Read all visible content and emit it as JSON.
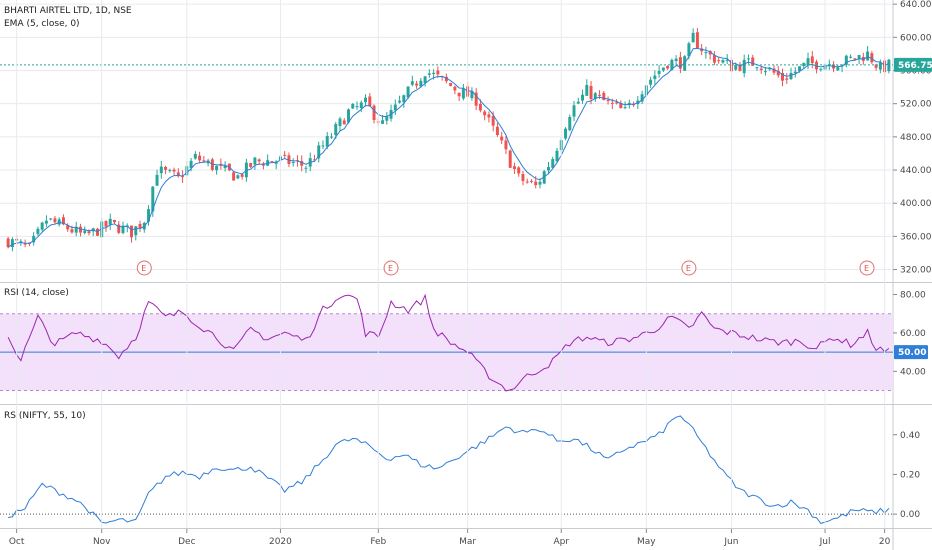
{
  "chart_data": {
    "type": "candlestick",
    "title": "BHARTI AIRTEL LTD, 1D, NSE",
    "indicator_label": "EMA (5, close, 0)",
    "last_price_label": "566.75",
    "last_price": 566.75,
    "x_tick_labels": [
      "Oct",
      "Nov",
      "Dec",
      "2020",
      "Feb",
      "Mar",
      "Apr",
      "May",
      "Jun",
      "Jul",
      "20"
    ],
    "x_tick_index": [
      2,
      22,
      42,
      64,
      87,
      108,
      130,
      150,
      170,
      192,
      206
    ],
    "n_bars": 208,
    "earnings_label": "E",
    "earnings_index": [
      32,
      90,
      160,
      208
    ],
    "price_axis": {
      "ylim": [
        305,
        645
      ],
      "ticks": [
        320,
        360,
        400,
        440,
        480,
        520,
        560,
        600,
        640
      ],
      "tick_labels": [
        "320.00",
        "360.00",
        "400.00",
        "440.00",
        "480.00",
        "520.00",
        "560.00",
        "600.00",
        "640.00"
      ]
    },
    "price_keypoints": [
      [
        0,
        355
      ],
      [
        5,
        345
      ],
      [
        9,
        380
      ],
      [
        14,
        370
      ],
      [
        18,
        360
      ],
      [
        24,
        375
      ],
      [
        29,
        365
      ],
      [
        32,
        380
      ],
      [
        35,
        440
      ],
      [
        40,
        430
      ],
      [
        44,
        455
      ],
      [
        50,
        440
      ],
      [
        54,
        432
      ],
      [
        58,
        450
      ],
      [
        64,
        452
      ],
      [
        70,
        445
      ],
      [
        75,
        475
      ],
      [
        80,
        510
      ],
      [
        84,
        520
      ],
      [
        88,
        495
      ],
      [
        92,
        520
      ],
      [
        98,
        560
      ],
      [
        102,
        548
      ],
      [
        106,
        535
      ],
      [
        110,
        525
      ],
      [
        116,
        470
      ],
      [
        120,
        430
      ],
      [
        124,
        420
      ],
      [
        128,
        455
      ],
      [
        132,
        510
      ],
      [
        136,
        535
      ],
      [
        141,
        520
      ],
      [
        145,
        510
      ],
      [
        150,
        545
      ],
      [
        155,
        570
      ],
      [
        159,
        570
      ],
      [
        161,
        600
      ],
      [
        164,
        580
      ],
      [
        170,
        565
      ],
      [
        176,
        570
      ],
      [
        182,
        550
      ],
      [
        188,
        568
      ],
      [
        196,
        570
      ],
      [
        202,
        580
      ],
      [
        205,
        562
      ],
      [
        207,
        566
      ]
    ],
    "rsi": {
      "title": "RSI (14, close)",
      "last_value_label": "50.00",
      "ylim": [
        23,
        86
      ],
      "band": [
        30,
        70
      ],
      "midline": 50,
      "ticks": [
        40,
        60,
        80
      ],
      "tick_labels": [
        "40.00",
        "60.00",
        "80.00"
      ],
      "keypoints": [
        [
          0,
          58
        ],
        [
          3,
          46
        ],
        [
          7,
          68
        ],
        [
          11,
          54
        ],
        [
          16,
          60
        ],
        [
          22,
          56
        ],
        [
          26,
          48
        ],
        [
          30,
          58
        ],
        [
          33,
          76
        ],
        [
          37,
          68
        ],
        [
          41,
          71
        ],
        [
          45,
          64
        ],
        [
          49,
          58
        ],
        [
          53,
          50
        ],
        [
          57,
          62
        ],
        [
          61,
          57
        ],
        [
          65,
          60
        ],
        [
          70,
          56
        ],
        [
          74,
          72
        ],
        [
          78,
          80
        ],
        [
          82,
          78
        ],
        [
          84,
          60
        ],
        [
          87,
          58
        ],
        [
          90,
          76
        ],
        [
          94,
          72
        ],
        [
          98,
          78
        ],
        [
          100,
          62
        ],
        [
          104,
          55
        ],
        [
          108,
          50
        ],
        [
          112,
          40
        ],
        [
          115,
          34
        ],
        [
          118,
          30
        ],
        [
          121,
          36
        ],
        [
          124,
          40
        ],
        [
          128,
          45
        ],
        [
          132,
          55
        ],
        [
          136,
          58
        ],
        [
          140,
          55
        ],
        [
          144,
          56
        ],
        [
          148,
          58
        ],
        [
          152,
          62
        ],
        [
          156,
          68
        ],
        [
          160,
          62
        ],
        [
          163,
          70
        ],
        [
          166,
          62
        ],
        [
          170,
          60
        ],
        [
          174,
          58
        ],
        [
          178,
          56
        ],
        [
          182,
          55
        ],
        [
          186,
          56
        ],
        [
          190,
          52
        ],
        [
          194,
          58
        ],
        [
          198,
          54
        ],
        [
          202,
          60
        ],
        [
          204,
          52
        ],
        [
          207,
          50
        ]
      ]
    },
    "rs": {
      "title": "RS (NIFTY, 55, 10)",
      "ylim": [
        -0.07,
        0.55
      ],
      "zero_line": 0,
      "ticks": [
        0.0,
        0.2,
        0.4
      ],
      "tick_labels": [
        "0.00",
        "0.20",
        "0.40"
      ],
      "keypoints": [
        [
          0,
          -0.01
        ],
        [
          4,
          0.03
        ],
        [
          8,
          0.15
        ],
        [
          12,
          0.11
        ],
        [
          16,
          0.07
        ],
        [
          19,
          0.02
        ],
        [
          22,
          -0.05
        ],
        [
          26,
          -0.03
        ],
        [
          30,
          -0.04
        ],
        [
          33,
          0.1
        ],
        [
          37,
          0.19
        ],
        [
          41,
          0.21
        ],
        [
          45,
          0.19
        ],
        [
          49,
          0.24
        ],
        [
          53,
          0.22
        ],
        [
          57,
          0.24
        ],
        [
          61,
          0.18
        ],
        [
          65,
          0.12
        ],
        [
          69,
          0.16
        ],
        [
          73,
          0.25
        ],
        [
          77,
          0.35
        ],
        [
          81,
          0.38
        ],
        [
          85,
          0.34
        ],
        [
          89,
          0.28
        ],
        [
          93,
          0.3
        ],
        [
          97,
          0.25
        ],
        [
          101,
          0.23
        ],
        [
          105,
          0.28
        ],
        [
          109,
          0.33
        ],
        [
          113,
          0.38
        ],
        [
          117,
          0.44
        ],
        [
          121,
          0.41
        ],
        [
          125,
          0.43
        ],
        [
          129,
          0.37
        ],
        [
          133,
          0.38
        ],
        [
          137,
          0.33
        ],
        [
          141,
          0.27
        ],
        [
          145,
          0.33
        ],
        [
          149,
          0.36
        ],
        [
          153,
          0.4
        ],
        [
          156,
          0.47
        ],
        [
          158,
          0.5
        ],
        [
          161,
          0.42
        ],
        [
          164,
          0.33
        ],
        [
          168,
          0.21
        ],
        [
          172,
          0.12
        ],
        [
          176,
          0.08
        ],
        [
          180,
          0.04
        ],
        [
          184,
          0.06
        ],
        [
          188,
          0.02
        ],
        [
          191,
          -0.04
        ],
        [
          195,
          -0.02
        ],
        [
          199,
          0.02
        ],
        [
          203,
          0.01
        ],
        [
          207,
          0.02
        ]
      ]
    },
    "colors": {
      "up": "#26a69a",
      "down": "#ef5350",
      "ema": "#2f7ed8",
      "rsi_line": "#9c27b0",
      "rsi_band": "#f3e0fa",
      "rs_line": "#2f7ed8",
      "price_tag": "#26a69a",
      "rsi_tag": "#2f7ed8",
      "grid": "#e7eaef",
      "pane_border": "#c8cbd1"
    }
  }
}
